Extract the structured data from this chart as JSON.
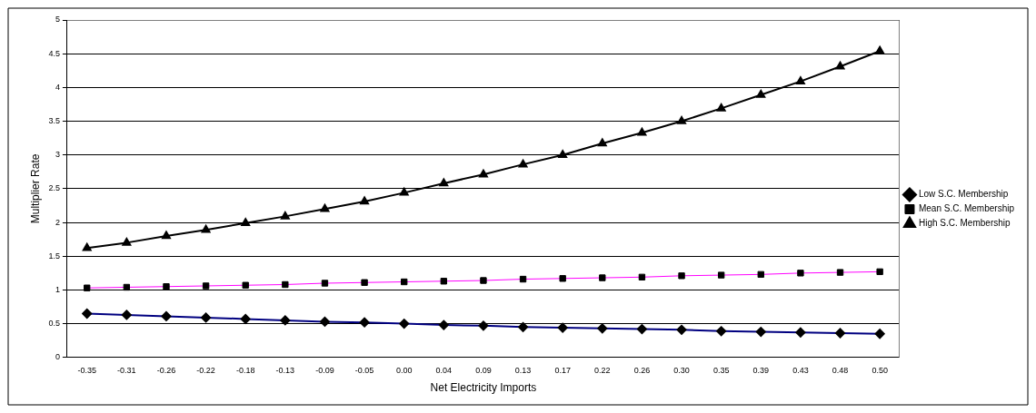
{
  "chart_data": {
    "type": "line",
    "xlabel": "Net Electricity Imports",
    "ylabel": "Multiplier Rate",
    "categories": [
      "-0.35",
      "-0.31",
      "-0.26",
      "-0.22",
      "-0.18",
      "-0.13",
      "-0.09",
      "-0.05",
      "0.00",
      "0.04",
      "0.09",
      "0.13",
      "0.17",
      "0.22",
      "0.26",
      "0.30",
      "0.35",
      "0.39",
      "0.43",
      "0.48",
      "0.50"
    ],
    "series": [
      {
        "name": "Low S.C. Membership",
        "color": "#000080",
        "marker": "diamond",
        "values": [
          0.65,
          0.63,
          0.61,
          0.59,
          0.57,
          0.55,
          0.53,
          0.52,
          0.5,
          0.48,
          0.47,
          0.45,
          0.44,
          0.43,
          0.42,
          0.41,
          0.39,
          0.38,
          0.37,
          0.36,
          0.35
        ]
      },
      {
        "name": "Mean S.C. Membership",
        "color": "#ff00ff",
        "marker": "square",
        "values": [
          1.03,
          1.04,
          1.05,
          1.06,
          1.07,
          1.08,
          1.1,
          1.11,
          1.12,
          1.13,
          1.14,
          1.16,
          1.17,
          1.18,
          1.19,
          1.21,
          1.22,
          1.23,
          1.25,
          1.26,
          1.27
        ]
      },
      {
        "name": "High S.C. Membership",
        "color": "#000000",
        "marker": "triangle",
        "values": [
          1.62,
          1.7,
          1.8,
          1.89,
          1.99,
          2.09,
          2.2,
          2.31,
          2.44,
          2.58,
          2.71,
          2.86,
          3.0,
          3.17,
          3.33,
          3.5,
          3.69,
          3.89,
          4.09,
          4.31,
          4.54
        ]
      }
    ],
    "ylim": [
      0,
      5
    ],
    "yticks": [
      0,
      0.5,
      1,
      1.5,
      2,
      2.5,
      3,
      3.5,
      4,
      4.5,
      5
    ],
    "grid": "y",
    "legend": "right",
    "line_style": "solid"
  }
}
